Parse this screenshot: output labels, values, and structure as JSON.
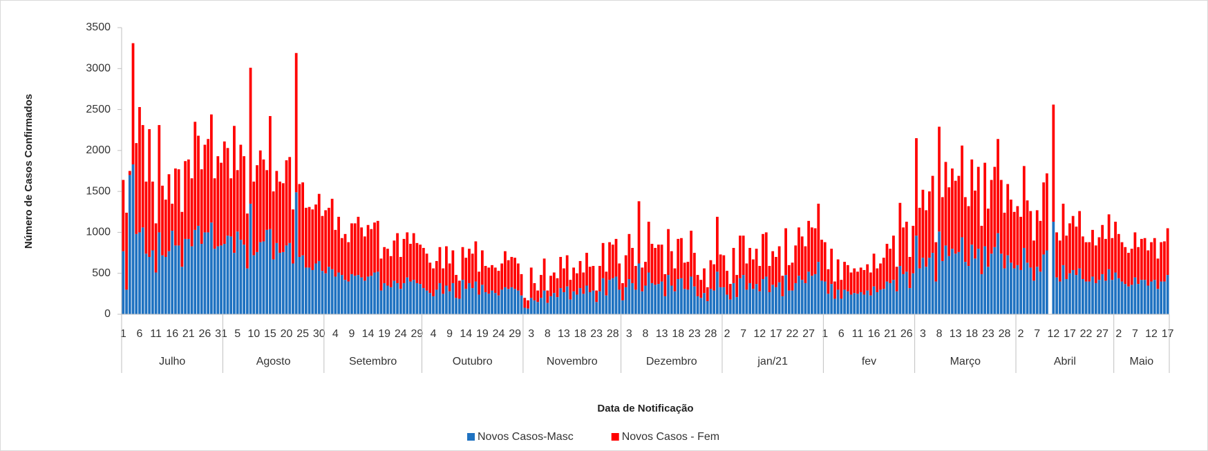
{
  "chart_data": {
    "type": "bar",
    "stacked": true,
    "y_label": "Número de Casos Confirmados",
    "x_label": "Data de Notificação",
    "ylim": [
      0,
      3500
    ],
    "yticks": [
      0,
      500,
      1000,
      1500,
      2000,
      2500,
      3000,
      3500
    ],
    "grid": false,
    "legend": "bottom",
    "month_groups": [
      {
        "label": "Julho",
        "days": 31
      },
      {
        "label": "Agosto",
        "days": 31
      },
      {
        "label": "Setembro",
        "days": 30
      },
      {
        "label": "Outubro",
        "days": 31
      },
      {
        "label": "Novembro",
        "days": 30
      },
      {
        "label": "Dezembro",
        "days": 31
      },
      {
        "label": "jan/21",
        "days": 31
      },
      {
        "label": "fev",
        "days": 28
      },
      {
        "label": "Março",
        "days": 31
      },
      {
        "label": "Abril",
        "days": 30
      },
      {
        "label": "Maio",
        "days": 17
      }
    ],
    "categories": [
      "1",
      null,
      null,
      null,
      null,
      "6",
      null,
      null,
      null,
      null,
      "11",
      null,
      null,
      null,
      null,
      "16",
      null,
      null,
      null,
      null,
      "21",
      null,
      null,
      null,
      null,
      "26",
      null,
      null,
      null,
      null,
      "31",
      null,
      null,
      null,
      null,
      "5",
      null,
      null,
      null,
      null,
      "10",
      null,
      null,
      null,
      null,
      "15",
      null,
      null,
      null,
      null,
      "20",
      null,
      null,
      null,
      null,
      "25",
      null,
      null,
      null,
      null,
      "30",
      null,
      null,
      null,
      null,
      "4",
      null,
      null,
      null,
      null,
      "9",
      null,
      null,
      null,
      null,
      "14",
      null,
      null,
      null,
      null,
      "19",
      null,
      null,
      null,
      null,
      "24",
      null,
      null,
      null,
      null,
      "29",
      null,
      null,
      null,
      null,
      "4",
      null,
      null,
      null,
      null,
      "9",
      null,
      null,
      null,
      null,
      "14",
      null,
      null,
      null,
      null,
      "19",
      null,
      null,
      null,
      null,
      "24",
      null,
      null,
      null,
      null,
      "29",
      null,
      null,
      null,
      null,
      "3",
      null,
      null,
      null,
      null,
      "8",
      null,
      null,
      null,
      null,
      "13",
      null,
      null,
      null,
      null,
      "18",
      null,
      null,
      null,
      null,
      "23",
      null,
      null,
      null,
      null,
      "28",
      null,
      null,
      null,
      null,
      "3",
      null,
      null,
      null,
      null,
      "8",
      null,
      null,
      null,
      null,
      "13",
      null,
      null,
      null,
      null,
      "18",
      null,
      null,
      null,
      null,
      "23",
      null,
      null,
      null,
      null,
      "28",
      null,
      null,
      null,
      null,
      "2",
      null,
      null,
      null,
      null,
      "7",
      null,
      null,
      null,
      null,
      "12",
      null,
      null,
      null,
      null,
      "17",
      null,
      null,
      null,
      null,
      "22",
      null,
      null,
      null,
      null,
      "27",
      null,
      null,
      null,
      null,
      "1",
      null,
      null,
      null,
      null,
      "6",
      null,
      null,
      null,
      null,
      "11",
      null,
      null,
      null,
      null,
      "16",
      null,
      null,
      null,
      null,
      "21",
      null,
      null,
      null,
      null,
      "26",
      null,
      null,
      null,
      null,
      "3",
      null,
      null,
      null,
      null,
      "8",
      null,
      null,
      null,
      null,
      "13",
      null,
      null,
      null,
      null,
      "18",
      null,
      null,
      null,
      null,
      "23",
      null,
      null,
      null,
      null,
      "28",
      null,
      null,
      null,
      null,
      "2",
      null,
      null,
      null,
      null,
      "7",
      null,
      null,
      null,
      null,
      "12",
      null,
      null,
      null,
      null,
      "17",
      null,
      null,
      null,
      null,
      "22",
      null,
      null,
      null,
      null,
      "27",
      null,
      null,
      null,
      null,
      "2",
      null,
      null,
      null,
      null,
      "7",
      null,
      null,
      null,
      null,
      "12",
      null,
      null,
      null,
      null,
      "17"
    ],
    "series": [
      {
        "name": "Novos Casos-Masc",
        "color": "#1f72c1",
        "values": [
          770,
          300,
          1700,
          1830,
          980,
          1000,
          1060,
          740,
          700,
          780,
          510,
          1000,
          720,
          700,
          770,
          1020,
          840,
          840,
          580,
          920,
          920,
          830,
          1030,
          1080,
          860,
          1000,
          1000,
          1120,
          800,
          830,
          840,
          860,
          960,
          950,
          750,
          1010,
          910,
          850,
          560,
          1350,
          720,
          760,
          880,
          890,
          1030,
          1040,
          670,
          870,
          750,
          760,
          840,
          870,
          620,
          1490,
          700,
          720,
          570,
          570,
          540,
          620,
          650,
          530,
          500,
          580,
          550,
          460,
          510,
          480,
          420,
          400,
          490,
          470,
          480,
          450,
          410,
          460,
          470,
          510,
          520,
          290,
          380,
          350,
          330,
          410,
          380,
          310,
          380,
          450,
          400,
          420,
          380,
          370,
          320,
          290,
          260,
          220,
          300,
          380,
          250,
          350,
          280,
          380,
          200,
          190,
          420,
          310,
          380,
          320,
          400,
          240,
          360,
          270,
          250,
          290,
          260,
          230,
          300,
          330,
          310,
          330,
          310,
          290,
          230,
          80,
          70,
          200,
          170,
          150,
          200,
          290,
          140,
          220,
          260,
          210,
          320,
          270,
          340,
          180,
          280,
          240,
          320,
          250,
          350,
          270,
          290,
          150,
          280,
          440,
          230,
          420,
          440,
          460,
          300,
          170,
          330,
          430,
          380,
          300,
          620,
          280,
          350,
          510,
          380,
          360,
          370,
          400,
          220,
          480,
          350,
          280,
          430,
          440,
          310,
          300,
          460,
          340,
          220,
          200,
          260,
          160,
          310,
          290,
          520,
          330,
          330,
          240,
          180,
          380,
          210,
          440,
          480,
          300,
          380,
          310,
          370,
          280,
          430,
          460,
          270,
          360,
          330,
          390,
          220,
          480,
          290,
          290,
          380,
          470,
          420,
          380,
          520,
          470,
          490,
          640,
          410,
          400,
          250,
          370,
          190,
          300,
          190,
          300,
          280,
          240,
          260,
          250,
          270,
          240,
          290,
          230,
          340,
          270,
          300,
          310,
          400,
          380,
          420,
          280,
          590,
          490,
          520,
          320,
          500,
          960,
          560,
          690,
          580,
          690,
          750,
          400,
          1010,
          650,
          840,
          710,
          800,
          740,
          760,
          940,
          640,
          590,
          850,
          680,
          800,
          490,
          830,
          580,
          740,
          820,
          990,
          740,
          560,
          720,
          630,
          560,
          600,
          540,
          810,
          630,
          570,
          410,
          580,
          520,
          730,
          780,
          0,
          1130,
          450,
          400,
          600,
          430,
          500,
          540,
          480,
          560,
          430,
          400,
          400,
          460,
          380,
          420,
          490,
          410,
          550,
          420,
          510,
          440,
          400,
          370,
          340,
          360,
          450,
          370,
          420,
          420,
          350,
          400,
          420,
          310,
          400,
          400,
          480
        ]
      },
      {
        "name": "Novos Casos - Fem",
        "color": "#ff0000",
        "values": [
          870,
          940,
          50,
          1480,
          1110,
          1530,
          1250,
          880,
          1560,
          840,
          600,
          1310,
          850,
          700,
          940,
          330,
          940,
          930,
          670,
          950,
          970,
          830,
          1320,
          1100,
          910,
          1070,
          1140,
          1320,
          860,
          1100,
          1010,
          1250,
          1070,
          710,
          1550,
          750,
          1160,
          1080,
          670,
          1660,
          900,
          1060,
          1120,
          1000,
          730,
          1380,
          830,
          880,
          870,
          840,
          1040,
          1050,
          660,
          1700,
          890,
          890,
          730,
          740,
          740,
          720,
          820,
          670,
          770,
          720,
          860,
          570,
          680,
          450,
          560,
          480,
          620,
          640,
          710,
          610,
          540,
          630,
          570,
          610,
          620,
          390,
          440,
          450,
          380,
          490,
          610,
          390,
          540,
          550,
          460,
          570,
          490,
          480,
          490,
          450,
          370,
          340,
          350,
          440,
          310,
          480,
          340,
          400,
          280,
          220,
          400,
          380,
          420,
          420,
          490,
          280,
          420,
          320,
          320,
          310,
          310,
          300,
          320,
          440,
          350,
          370,
          380,
          330,
          260,
          120,
          100,
          370,
          210,
          140,
          280,
          390,
          150,
          250,
          250,
          230,
          380,
          290,
          380,
          240,
          290,
          260,
          330,
          260,
          400,
          310,
          300,
          140,
          310,
          430,
          290,
          460,
          410,
          460,
          320,
          210,
          390,
          550,
          430,
          290,
          760,
          290,
          290,
          620,
          480,
          450,
          480,
          450,
          270,
          560,
          420,
          280,
          490,
          490,
          320,
          340,
          560,
          410,
          260,
          220,
          300,
          170,
          350,
          320,
          670,
          400,
          390,
          290,
          190,
          430,
          270,
          520,
          480,
          320,
          430,
          360,
          430,
          310,
          550,
          540,
          320,
          410,
          370,
          440,
          250,
          570,
          310,
          340,
          460,
          590,
          530,
          450,
          620,
          590,
          560,
          710,
          500,
          480,
          300,
          430,
          210,
          370,
          230,
          340,
          320,
          270,
          300,
          270,
          300,
          300,
          320,
          280,
          400,
          290,
          320,
          380,
          460,
          420,
          540,
          300,
          770,
          570,
          610,
          380,
          580,
          1190,
          740,
          830,
          690,
          810,
          940,
          480,
          1280,
          780,
          1020,
          840,
          980,
          890,
          930,
          1120,
          790,
          730,
          1040,
          830,
          1000,
          590,
          1020,
          710,
          900,
          980,
          1150,
          900,
          680,
          870,
          770,
          690,
          720,
          650,
          1000,
          760,
          690,
          490,
          690,
          620,
          880,
          940,
          0,
          1430,
          550,
          500,
          750,
          530,
          610,
          660,
          590,
          700,
          520,
          480,
          480,
          570,
          460,
          520,
          600,
          510,
          670,
          510,
          620,
          540,
          480,
          450,
          410,
          440,
          550,
          450,
          500,
          510,
          430,
          480,
          510,
          370,
          480,
          490,
          570
        ]
      }
    ]
  }
}
